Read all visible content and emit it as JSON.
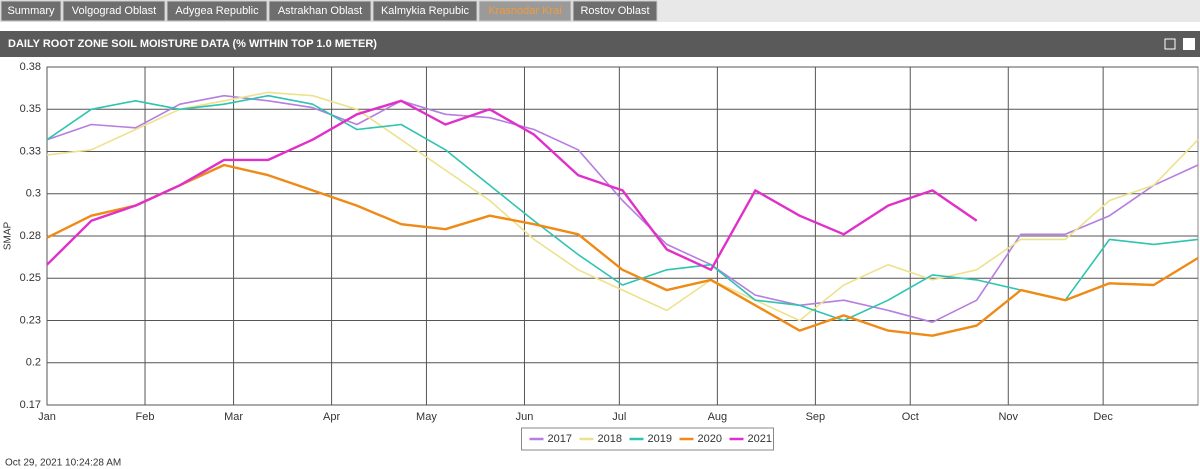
{
  "tabs": [
    "Summary",
    "Volgograd Oblast",
    "Adygea Republic",
    "Astrakhan Oblast",
    "Kalmykia Repubic",
    "Krasnodar Krai",
    "Rostov Oblast"
  ],
  "active_tab": 5,
  "panel_title": "DAILY ROOT ZONE SOIL MOISTURE DATA (% WITHIN TOP 1.0 METER)",
  "timestamp": "Oct 29, 2021 10:24:28 AM",
  "chart_data": {
    "type": "line",
    "ylabel": "SMAP",
    "x": [
      0,
      14,
      28,
      42,
      56,
      70,
      84,
      98,
      112,
      126,
      140,
      154,
      168,
      182,
      196,
      210,
      224,
      238,
      252,
      266,
      280,
      294,
      308,
      322,
      336,
      350,
      364
    ],
    "xlim": [
      0,
      364
    ],
    "xticks": [
      {
        "value": 0,
        "label": "Jan"
      },
      {
        "value": 31,
        "label": "Feb"
      },
      {
        "value": 59,
        "label": "Mar"
      },
      {
        "value": 90,
        "label": "Apr"
      },
      {
        "value": 120,
        "label": "May"
      },
      {
        "value": 151,
        "label": "Jun"
      },
      {
        "value": 181,
        "label": "Jul"
      },
      {
        "value": 212,
        "label": "Aug"
      },
      {
        "value": 243,
        "label": "Sep"
      },
      {
        "value": 273,
        "label": "Oct"
      },
      {
        "value": 304,
        "label": "Nov"
      },
      {
        "value": 334,
        "label": "Dec"
      }
    ],
    "ylim": [
      0.175,
      0.375
    ],
    "yticks": [
      {
        "value": 0.175,
        "label": "0.17"
      },
      0.2,
      {
        "value": 0.225,
        "label": "0.23"
      },
      0.25,
      {
        "value": 0.275,
        "label": "0.28"
      },
      0.3,
      {
        "value": 0.325,
        "label": "0.33"
      },
      0.35,
      {
        "value": 0.375,
        "label": "0.38"
      }
    ],
    "grid": true,
    "legend": "bottom",
    "series": [
      {
        "name": "2017",
        "color": "#b57ee0",
        "values": [
          0.332,
          0.341,
          0.339,
          0.353,
          0.358,
          0.355,
          0.351,
          0.341,
          0.355,
          0.347,
          0.345,
          0.338,
          0.326,
          0.296,
          0.27,
          0.258,
          0.24,
          0.234,
          0.237,
          0.231,
          0.224,
          0.237,
          0.276,
          0.276,
          0.287,
          0.305,
          0.317
        ]
      },
      {
        "name": "2018",
        "color": "#ede28c",
        "values": [
          0.323,
          0.326,
          0.338,
          0.35,
          0.355,
          0.36,
          0.358,
          0.35,
          0.332,
          0.314,
          0.296,
          0.273,
          0.255,
          0.243,
          0.231,
          0.249,
          0.237,
          0.225,
          0.246,
          0.258,
          0.249,
          0.255,
          0.273,
          0.273,
          0.296,
          0.305,
          0.332
        ]
      },
      {
        "name": "2019",
        "color": "#2ec4b0",
        "values": [
          0.332,
          0.35,
          0.355,
          0.35,
          0.353,
          0.358,
          0.353,
          0.338,
          0.341,
          0.326,
          0.305,
          0.284,
          0.264,
          0.246,
          0.255,
          0.258,
          0.237,
          0.234,
          0.225,
          0.237,
          0.252,
          0.249,
          0.243,
          0.237,
          0.273,
          0.27,
          0.273
        ]
      },
      {
        "name": "2020",
        "color": "#ef8a17",
        "values": [
          0.274,
          0.287,
          0.293,
          0.305,
          0.317,
          0.311,
          0.302,
          0.293,
          0.282,
          0.279,
          0.287,
          0.282,
          0.276,
          0.255,
          0.243,
          0.249,
          0.234,
          0.219,
          0.228,
          0.219,
          0.216,
          0.222,
          0.243,
          0.237,
          0.247,
          0.246,
          0.262
        ]
      },
      {
        "name": "2021",
        "color": "#e030c8",
        "values": [
          0.258,
          0.284,
          0.293,
          0.305,
          0.32,
          0.32,
          0.332,
          0.347,
          0.355,
          0.341,
          0.35,
          0.335,
          0.311,
          0.302,
          0.267,
          0.255,
          0.302,
          0.287,
          0.276,
          0.293,
          0.302,
          0.284,
          null,
          null,
          null,
          null,
          null
        ]
      }
    ]
  }
}
